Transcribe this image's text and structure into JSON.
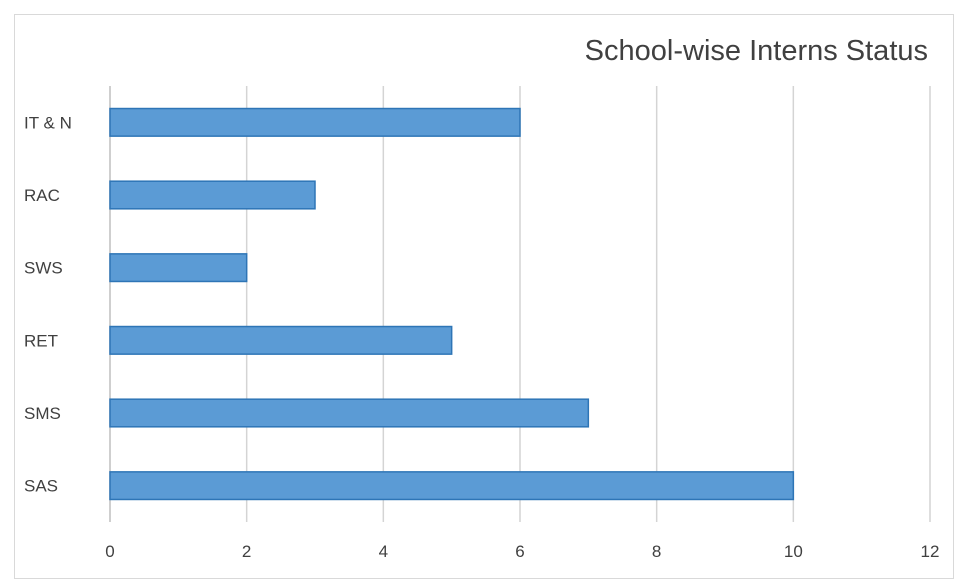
{
  "chart_data": {
    "type": "bar",
    "orientation": "horizontal",
    "title": "School-wise Interns Status",
    "categories": [
      "IT & N",
      "RAC",
      "SWS",
      "RET",
      "SMS",
      "SAS"
    ],
    "values": [
      6,
      3,
      2,
      5,
      7,
      10
    ],
    "xlim": [
      0,
      12
    ],
    "x_ticks": [
      0,
      2,
      4,
      6,
      8,
      10,
      12
    ],
    "xlabel": "",
    "ylabel": "",
    "grid": "vertical",
    "legend": "none",
    "bar_color": "#5b9bd5",
    "bar_border_color": "#2e75b6"
  }
}
